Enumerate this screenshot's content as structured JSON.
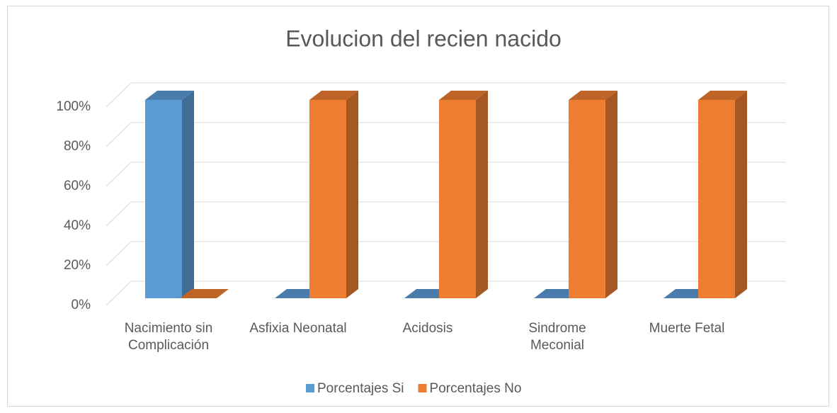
{
  "chart_data": {
    "type": "bar3d",
    "title": "Evolucion del recien nacido",
    "categories": [
      "Nacimiento sin Complicación",
      "Asfixia Neonatal",
      "Acidosis",
      "Sindrome Meconial",
      "Muerte Fetal"
    ],
    "series": [
      {
        "name": "Porcentajes Si",
        "color": "#5b9bd5",
        "values": [
          100,
          0,
          0,
          0,
          0
        ]
      },
      {
        "name": "Porcentajes No",
        "color": "#ed7d31",
        "values": [
          0,
          100,
          100,
          100,
          100
        ]
      }
    ],
    "ylim": [
      0,
      100
    ],
    "yticks": [
      {
        "value": 0,
        "label": "0%"
      },
      {
        "value": 20,
        "label": "20%"
      },
      {
        "value": 40,
        "label": "40%"
      },
      {
        "value": 60,
        "label": "60%"
      },
      {
        "value": 80,
        "label": "80%"
      },
      {
        "value": 100,
        "label": "100%"
      }
    ],
    "grid": true,
    "legend": "bottom"
  }
}
